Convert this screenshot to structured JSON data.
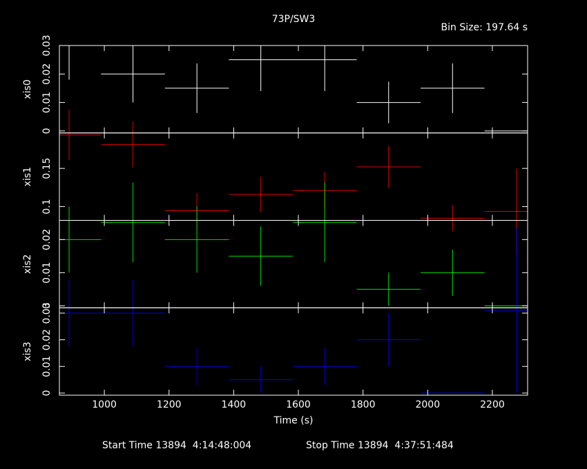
{
  "header": {
    "title": "73P/SW3",
    "bin_size": "Bin Size: 197.64 s"
  },
  "footer": {
    "start": "Start Time 13894  4:14:48:004",
    "stop": "Stop Time 13894  4:37:51:484"
  },
  "chart_data": [
    {
      "type": "errorbar",
      "ylabel": "xis0",
      "color": "#ffffff",
      "values": [
        0.03,
        0.02,
        0.015,
        0.025,
        0.025,
        0.01,
        0.015,
        0
      ],
      "yerr": [
        0.012,
        0.01,
        0.0087,
        0.011,
        0.011,
        0.0073,
        0.0087,
        0
      ],
      "ylim": [
        -0.0007,
        0.03
      ],
      "yticks": [
        0,
        0.01,
        0.02,
        0.03
      ]
    },
    {
      "type": "errorbar",
      "ylabel": "xis1",
      "color": "#e00000",
      "values": [
        0.1937,
        0.1812,
        0.0946,
        0.116,
        0.121,
        0.152,
        0.0848,
        0.0937
      ],
      "yerr": [
        0.033,
        0.03,
        0.023,
        0.023,
        0.024,
        0.027,
        0.017,
        0.056
      ],
      "ylim": [
        0.082,
        0.1964
      ],
      "yticks": [
        0.1,
        0.15
      ]
    },
    {
      "type": "errorbar",
      "ylabel": "xis2",
      "color": "#00e000",
      "values": [
        0.02,
        0.0252,
        0.02,
        0.015,
        0.0252,
        0.005,
        0.01,
        0
      ],
      "yerr": [
        0.01,
        0.012,
        0.01,
        0.009,
        0.012,
        0.005,
        0.007,
        0
      ],
      "ylim": [
        -0.0006,
        0.0258
      ],
      "yticks": [
        0,
        0.01,
        0.02
      ]
    },
    {
      "type": "errorbar",
      "ylabel": "xis3",
      "color": "#0000e0",
      "values": [
        0.03,
        0.03,
        0.01,
        0.005,
        0.01,
        0.02,
        0,
        0.031
      ],
      "yerr": [
        0.0125,
        0.0125,
        0.007,
        0.005,
        0.007,
        0.01,
        0,
        0.031
      ],
      "ylim": [
        -0.0008,
        0.032
      ],
      "yticks": [
        0,
        0.01,
        0.02,
        0.03
      ],
      "x": [
        891,
        1088.6,
        1286.3,
        1483.9,
        1681.6,
        1879.2,
        2076.8,
        2274.5
      ],
      "xerr": 98.82,
      "xlim": [
        861,
        2309
      ],
      "xticks": [
        1000,
        1200,
        1400,
        1600,
        1800,
        2000,
        2200
      ],
      "xlabel": "Time (s)"
    }
  ]
}
